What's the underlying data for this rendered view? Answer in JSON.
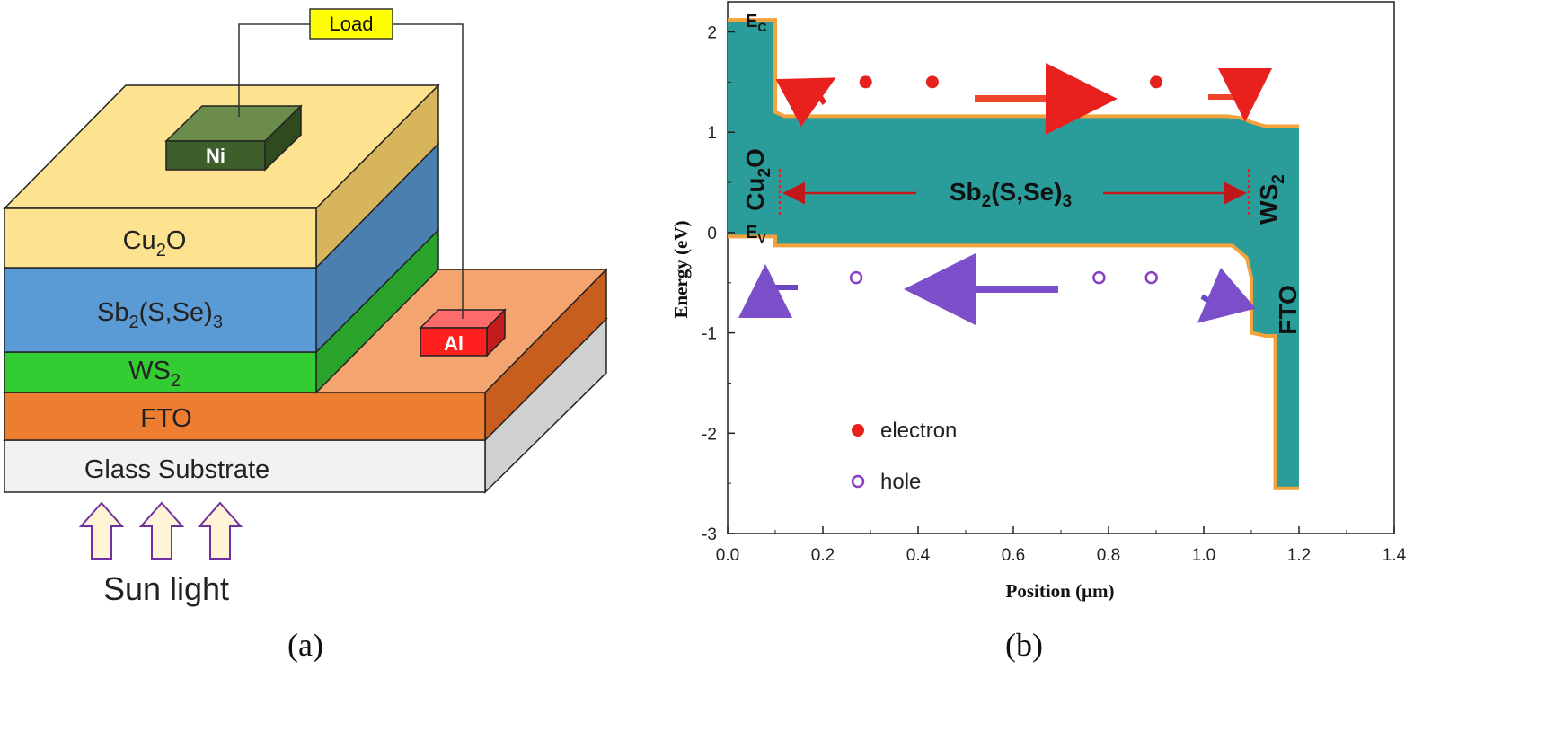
{
  "panel_a": {
    "caption": "(a)",
    "load_label": "Load",
    "contacts": {
      "top": "Ni",
      "bottom": "Al"
    },
    "layers": [
      {
        "key": "cu2o",
        "base": "Cu",
        "sub": "2",
        "tail": "O",
        "color": "#fce38a"
      },
      {
        "key": "sbsse",
        "base": "Sb",
        "sub": "2",
        "tail": "(S,Se)",
        "sub2": "3",
        "color": "#5b9bd5"
      },
      {
        "key": "ws2",
        "base": "WS",
        "sub": "2",
        "tail": "",
        "color": "#33cc33"
      },
      {
        "key": "fto",
        "base": "FTO",
        "sub": "",
        "tail": "",
        "color": "#ed7d31"
      },
      {
        "key": "glass",
        "base": "Glass Substrate",
        "sub": "",
        "tail": "",
        "color": "#f2f2f2"
      }
    ],
    "sun_label": "Sun light"
  },
  "panel_b": {
    "caption": "(b)",
    "chart_data": {
      "type": "line",
      "xlabel": "Position (μm)",
      "ylabel": "Energy (eV)",
      "xlim": [
        0.0,
        1.4
      ],
      "ylim": [
        -3,
        2.3
      ],
      "xticks": [
        "0.0",
        "0.2",
        "0.4",
        "0.6",
        "0.8",
        "1.0",
        "1.2",
        "1.4"
      ],
      "yticks": [
        "-3",
        "-2",
        "-1",
        "0",
        "1",
        "2"
      ],
      "fill_color": "#2a9d9b",
      "edge_color": "#f4a23c",
      "series": [
        {
          "name": "Ec",
          "x": [
            0.0,
            0.1,
            0.1,
            0.12,
            1.05,
            1.08,
            1.1,
            1.13,
            1.2
          ],
          "y": [
            2.12,
            2.12,
            1.2,
            1.16,
            1.16,
            1.14,
            1.1,
            1.06,
            1.06
          ]
        },
        {
          "name": "Ev",
          "x": [
            0.0,
            0.1,
            0.1,
            0.12,
            1.06,
            1.09,
            1.1,
            1.1,
            1.13,
            1.15,
            1.15,
            1.2
          ],
          "y": [
            -0.04,
            -0.04,
            -0.13,
            -0.13,
            -0.13,
            -0.25,
            -0.45,
            -1.0,
            -1.03,
            -1.03,
            -2.55,
            -2.55
          ]
        }
      ],
      "region_labels": [
        {
          "key": "cu2o",
          "base": "Cu",
          "sub": "2",
          "tail": "O"
        },
        {
          "key": "sbsse",
          "base": "Sb",
          "sub": "2",
          "tail": "(S,Se)",
          "sub2": "3"
        },
        {
          "key": "ws2",
          "base": "WS",
          "sub": "2",
          "tail": ""
        },
        {
          "key": "fto",
          "base": "FTO",
          "sub": "",
          "tail": ""
        }
      ],
      "band_labels": {
        "ec": "E",
        "ec_sub": "C",
        "ev": "E",
        "ev_sub": "V"
      },
      "electrons_x": [
        0.29,
        0.43,
        0.9
      ],
      "electrons_y": 1.5,
      "holes_x": [
        0.27,
        0.78,
        0.89
      ],
      "holes_y": -0.45,
      "legend": [
        {
          "label": "electron",
          "marker": "filled",
          "color": "#e8211e"
        },
        {
          "label": "hole",
          "marker": "open",
          "color": "#8a3fc2"
        }
      ]
    }
  }
}
